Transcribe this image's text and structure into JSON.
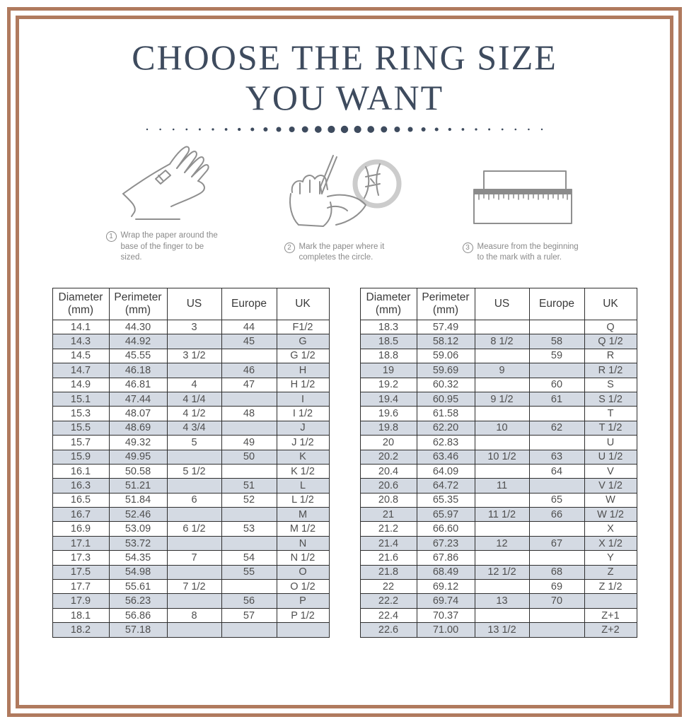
{
  "page": {
    "title_line1": "CHOOSE THE RING SIZE",
    "title_line2": "YOU WANT"
  },
  "steps": [
    {
      "number": "1",
      "icon": "hand-wrap-icon",
      "text": "Wrap the paper around the base of the finger to be sized."
    },
    {
      "number": "2",
      "icon": "mark-paper-icon",
      "text": "Mark the paper where it completes the circle."
    },
    {
      "number": "3",
      "icon": "ruler-icon",
      "text": "Measure from the beginning to the mark with a ruler."
    }
  ],
  "table_columns": [
    {
      "label": "Diameter",
      "sub": "(mm)"
    },
    {
      "label": "Perimeter",
      "sub": "(mm)"
    },
    {
      "label": "US",
      "sub": ""
    },
    {
      "label": "Europe",
      "sub": ""
    },
    {
      "label": "UK",
      "sub": ""
    }
  ],
  "ring_size_tables": {
    "left": {
      "rows": [
        [
          "14.1",
          "44.30",
          "3",
          "44",
          "F1/2"
        ],
        [
          "14.3",
          "44.92",
          "",
          "45",
          "G"
        ],
        [
          "14.5",
          "45.55",
          "3 1/2",
          "",
          "G 1/2"
        ],
        [
          "14.7",
          "46.18",
          "",
          "46",
          "H"
        ],
        [
          "14.9",
          "46.81",
          "4",
          "47",
          "H 1/2"
        ],
        [
          "15.1",
          "47.44",
          "4 1/4",
          "",
          "I"
        ],
        [
          "15.3",
          "48.07",
          "4 1/2",
          "48",
          "I 1/2"
        ],
        [
          "15.5",
          "48.69",
          "4 3/4",
          "",
          "J"
        ],
        [
          "15.7",
          "49.32",
          "5",
          "49",
          "J 1/2"
        ],
        [
          "15.9",
          "49.95",
          "",
          "50",
          "K"
        ],
        [
          "16.1",
          "50.58",
          "5 1/2",
          "",
          "K 1/2"
        ],
        [
          "16.3",
          "51.21",
          "",
          "51",
          "L"
        ],
        [
          "16.5",
          "51.84",
          "6",
          "52",
          "L 1/2"
        ],
        [
          "16.7",
          "52.46",
          "",
          "",
          "M"
        ],
        [
          "16.9",
          "53.09",
          "6 1/2",
          "53",
          "M 1/2"
        ],
        [
          "17.1",
          "53.72",
          "",
          "",
          "N"
        ],
        [
          "17.3",
          "54.35",
          "7",
          "54",
          "N 1/2"
        ],
        [
          "17.5",
          "54.98",
          "",
          "55",
          "O"
        ],
        [
          "17.7",
          "55.61",
          "7 1/2",
          "",
          "O 1/2"
        ],
        [
          "17.9",
          "56.23",
          "",
          "56",
          "P"
        ],
        [
          "18.1",
          "56.86",
          "8",
          "57",
          "P 1/2"
        ],
        [
          "18.2",
          "57.18",
          "",
          "",
          ""
        ]
      ]
    },
    "right": {
      "rows": [
        [
          "18.3",
          "57.49",
          "",
          "",
          "Q"
        ],
        [
          "18.5",
          "58.12",
          "8 1/2",
          "58",
          "Q 1/2"
        ],
        [
          "18.8",
          "59.06",
          "",
          "59",
          "R"
        ],
        [
          "19",
          "59.69",
          "9",
          "",
          "R 1/2"
        ],
        [
          "19.2",
          "60.32",
          "",
          "60",
          "S"
        ],
        [
          "19.4",
          "60.95",
          "9 1/2",
          "61",
          "S 1/2"
        ],
        [
          "19.6",
          "61.58",
          "",
          "",
          "T"
        ],
        [
          "19.8",
          "62.20",
          "10",
          "62",
          "T 1/2"
        ],
        [
          "20",
          "62.83",
          "",
          "",
          "U"
        ],
        [
          "20.2",
          "63.46",
          "10 1/2",
          "63",
          "U 1/2"
        ],
        [
          "20.4",
          "64.09",
          "",
          "64",
          "V"
        ],
        [
          "20.6",
          "64.72",
          "11",
          "",
          "V 1/2"
        ],
        [
          "20.8",
          "65.35",
          "",
          "65",
          "W"
        ],
        [
          "21",
          "65.97",
          "11 1/2",
          "66",
          "W 1/2"
        ],
        [
          "21.2",
          "66.60",
          "",
          "",
          "X"
        ],
        [
          "21.4",
          "67.23",
          "12",
          "67",
          "X 1/2"
        ],
        [
          "21.6",
          "67.86",
          "",
          "",
          "Y"
        ],
        [
          "21.8",
          "68.49",
          "12 1/2",
          "68",
          "Z"
        ],
        [
          "22",
          "69.12",
          "",
          "69",
          "Z 1/2"
        ],
        [
          "22.2",
          "69.74",
          "13",
          "70",
          ""
        ],
        [
          "22.4",
          "70.37",
          "",
          "",
          "Z+1"
        ],
        [
          "22.6",
          "71.00",
          "13 1/2",
          "",
          "Z+2"
        ]
      ]
    }
  },
  "colors": {
    "frame_copper": "#b07a5e",
    "title_navy": "#3e4b5e",
    "row_shade": "#d4dae3",
    "table_border": "#2e2e2e",
    "cell_text": "#4f4f4f",
    "caption_gray": "#8a8a8a"
  }
}
